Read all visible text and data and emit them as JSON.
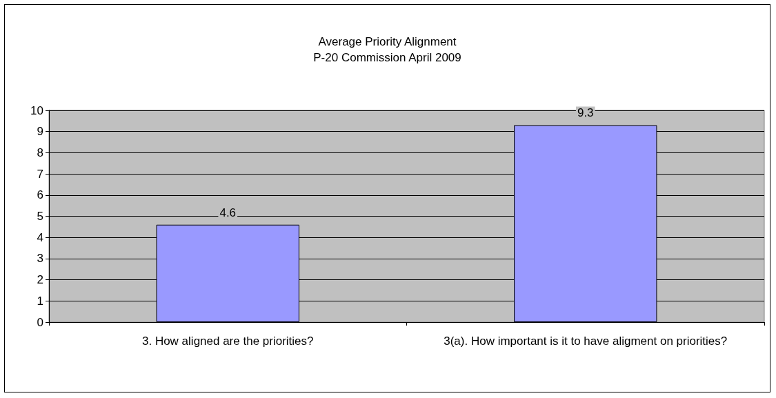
{
  "chart_data": {
    "type": "bar",
    "title": "Average Priority Alignment",
    "subtitle": "P-20 Commission April 2009",
    "categories": [
      "3. How aligned are the priorities?",
      "3(a). How important is it to have aligment on priorities?"
    ],
    "values": [
      4.6,
      9.3
    ],
    "color": "#9999ff",
    "ylim": [
      0,
      10
    ],
    "yticks": [
      0,
      1,
      2,
      3,
      4,
      5,
      6,
      7,
      8,
      9,
      10
    ],
    "grid": "y",
    "data_labels": true
  }
}
